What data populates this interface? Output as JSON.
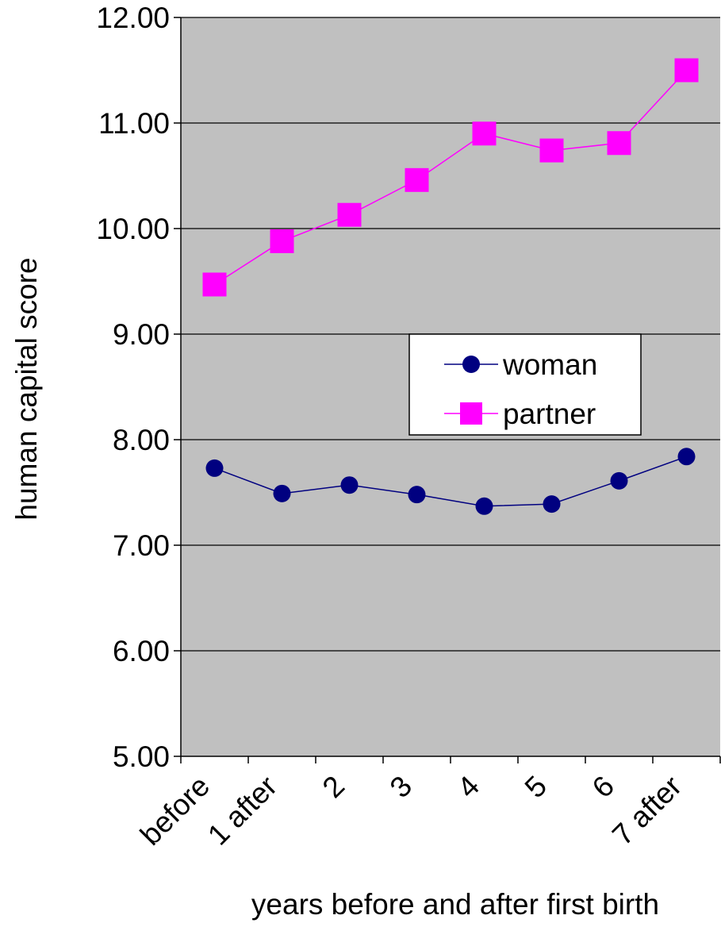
{
  "chart_data": {
    "type": "line",
    "title": "",
    "xlabel": "years before and after first birth",
    "ylabel": "human capital score",
    "categories": [
      "before",
      "1 after",
      "2",
      "3",
      "4",
      "5",
      "6",
      "7 after"
    ],
    "ylim": [
      5.0,
      12.0
    ],
    "yticks": [
      "5.00",
      "6.00",
      "7.00",
      "8.00",
      "9.00",
      "10.00",
      "11.00",
      "12.00"
    ],
    "grid": true,
    "legend_position": "right-center",
    "colors": {
      "plot_background": "#c0c0c0"
    },
    "series": [
      {
        "name": "woman",
        "marker": "circle",
        "color": "#000080",
        "values": [
          7.73,
          7.49,
          7.57,
          7.48,
          7.37,
          7.39,
          7.61,
          7.84
        ]
      },
      {
        "name": "partner",
        "marker": "square",
        "color": "#ff00ff",
        "values": [
          9.47,
          9.88,
          10.13,
          10.46,
          10.9,
          10.74,
          10.81,
          11.5
        ]
      }
    ]
  }
}
